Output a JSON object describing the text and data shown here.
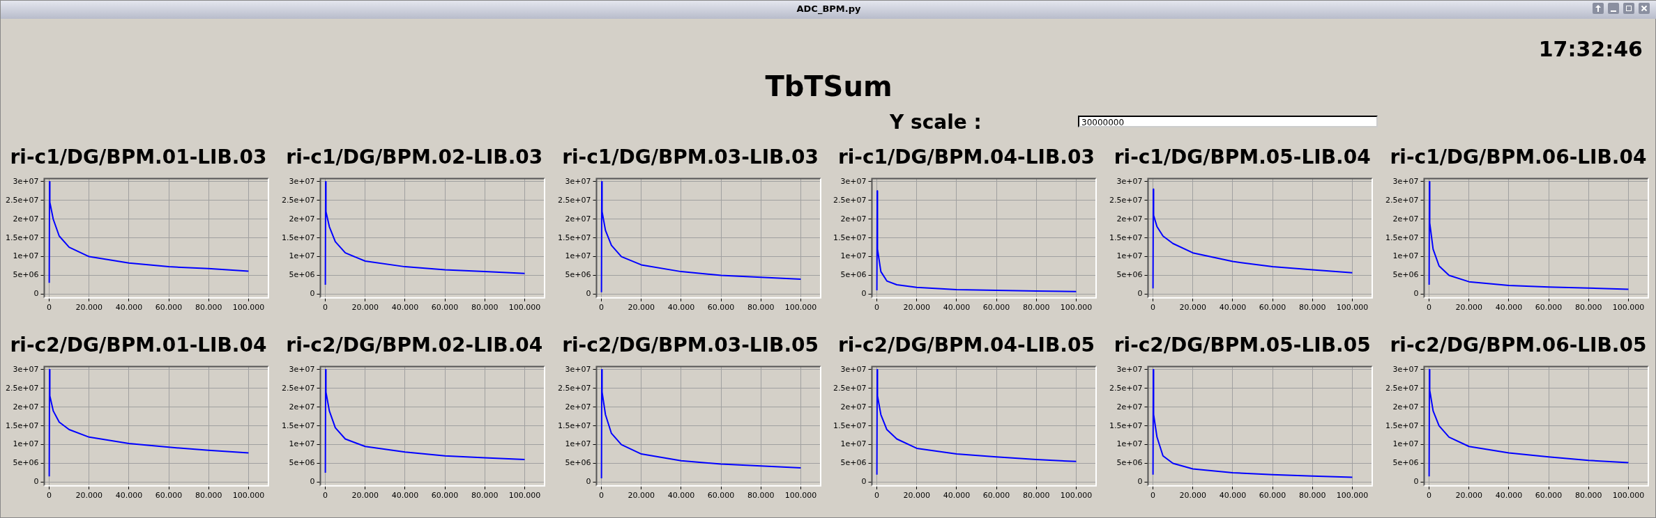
{
  "chart_data": [
    {
      "type": "other",
      "title": "TbTSum",
      "annotations": [
        "ADC_BPM.py",
        "17:32:46",
        "Y scale :",
        "30000000"
      ]
    },
    {
      "type": "line",
      "title": "ri-c1/DG/BPM.01-LIB.03",
      "color": "#0000ff",
      "grid": true,
      "x": [
        0,
        0.15,
        0.3,
        2,
        5,
        10,
        20,
        40,
        60,
        80,
        100
      ],
      "values": [
        3000000,
        30000000,
        24500000,
        20000000,
        15500000,
        12500000,
        10000000,
        8300000,
        7300000,
        6800000,
        6100000
      ],
      "xlim": [
        -2.5,
        110
      ],
      "ylim": [
        -1000000,
        30800000
      ],
      "xticks": [
        {
          "value": 0,
          "label": "0"
        },
        {
          "value": 20,
          "label": "20.000"
        },
        {
          "value": 40,
          "label": "40.000"
        },
        {
          "value": 60,
          "label": "60.000"
        },
        {
          "value": 80,
          "label": "80.000"
        },
        {
          "value": 100,
          "label": "100.000"
        }
      ],
      "yticks": [
        {
          "value": 0,
          "label": "0"
        },
        {
          "value": 5000000,
          "label": "5e+06"
        },
        {
          "value": 10000000,
          "label": "1e+07"
        },
        {
          "value": 15000000,
          "label": "1.5e+07"
        },
        {
          "value": 20000000,
          "label": "2e+07"
        },
        {
          "value": 25000000,
          "label": "2.5e+07"
        },
        {
          "value": 30000000,
          "label": "3e+07"
        }
      ]
    },
    {
      "type": "line",
      "title": "ri-c1/DG/BPM.02-LIB.03",
      "color": "#0000ff",
      "grid": true,
      "x": [
        0,
        0.15,
        0.3,
        2,
        5,
        10,
        20,
        40,
        60,
        80,
        100
      ],
      "values": [
        2500000,
        30000000,
        22000000,
        18000000,
        14000000,
        11000000,
        8800000,
        7300000,
        6500000,
        6000000,
        5500000
      ],
      "xlim": [
        -2.5,
        110
      ],
      "ylim": [
        -1000000,
        30800000
      ],
      "xticks": [
        {
          "value": 0,
          "label": "0"
        },
        {
          "value": 20,
          "label": "20.000"
        },
        {
          "value": 40,
          "label": "40.000"
        },
        {
          "value": 60,
          "label": "60.000"
        },
        {
          "value": 80,
          "label": "80.000"
        },
        {
          "value": 100,
          "label": "100.000"
        }
      ],
      "yticks": [
        {
          "value": 0,
          "label": "0"
        },
        {
          "value": 5000000,
          "label": "5e+06"
        },
        {
          "value": 10000000,
          "label": "1e+07"
        },
        {
          "value": 15000000,
          "label": "1.5e+07"
        },
        {
          "value": 20000000,
          "label": "2e+07"
        },
        {
          "value": 25000000,
          "label": "2.5e+07"
        },
        {
          "value": 30000000,
          "label": "3e+07"
        }
      ]
    },
    {
      "type": "line",
      "title": "ri-c1/DG/BPM.03-LIB.03",
      "color": "#0000ff",
      "grid": true,
      "x": [
        0,
        0.15,
        0.3,
        2,
        5,
        10,
        20,
        40,
        60,
        80,
        100
      ],
      "values": [
        500000,
        30000000,
        22000000,
        17000000,
        13000000,
        10000000,
        7800000,
        6000000,
        5000000,
        4500000,
        4000000
      ],
      "xlim": [
        -2.5,
        110
      ],
      "ylim": [
        -1000000,
        30800000
      ],
      "xticks": [
        {
          "value": 0,
          "label": "0"
        },
        {
          "value": 20,
          "label": "20.000"
        },
        {
          "value": 40,
          "label": "40.000"
        },
        {
          "value": 60,
          "label": "60.000"
        },
        {
          "value": 80,
          "label": "80.000"
        },
        {
          "value": 100,
          "label": "100.000"
        }
      ],
      "yticks": [
        {
          "value": 0,
          "label": "0"
        },
        {
          "value": 5000000,
          "label": "5e+06"
        },
        {
          "value": 10000000,
          "label": "1e+07"
        },
        {
          "value": 15000000,
          "label": "1.5e+07"
        },
        {
          "value": 20000000,
          "label": "2e+07"
        },
        {
          "value": 25000000,
          "label": "2.5e+07"
        },
        {
          "value": 30000000,
          "label": "3e+07"
        }
      ]
    },
    {
      "type": "line",
      "title": "ri-c1/DG/BPM.04-LIB.03",
      "color": "#0000ff",
      "grid": true,
      "x": [
        0,
        0.15,
        0.3,
        2,
        5,
        10,
        20,
        40,
        60,
        80,
        100
      ],
      "values": [
        1000000,
        27500000,
        12000000,
        6000000,
        3500000,
        2500000,
        1800000,
        1200000,
        1000000,
        800000,
        700000
      ],
      "xlim": [
        -2.5,
        110
      ],
      "ylim": [
        -1000000,
        30800000
      ],
      "xticks": [
        {
          "value": 0,
          "label": "0"
        },
        {
          "value": 20,
          "label": "20.000"
        },
        {
          "value": 40,
          "label": "40.000"
        },
        {
          "value": 60,
          "label": "60.000"
        },
        {
          "value": 80,
          "label": "80.000"
        },
        {
          "value": 100,
          "label": "100.000"
        }
      ],
      "yticks": [
        {
          "value": 0,
          "label": "0"
        },
        {
          "value": 5000000,
          "label": "5e+06"
        },
        {
          "value": 10000000,
          "label": "1e+07"
        },
        {
          "value": 15000000,
          "label": "1.5e+07"
        },
        {
          "value": 20000000,
          "label": "2e+07"
        },
        {
          "value": 25000000,
          "label": "2.5e+07"
        },
        {
          "value": 30000000,
          "label": "3e+07"
        }
      ]
    },
    {
      "type": "line",
      "title": "ri-c1/DG/BPM.05-LIB.04",
      "color": "#0000ff",
      "grid": true,
      "x": [
        0,
        0.15,
        0.3,
        2,
        5,
        10,
        20,
        40,
        60,
        80,
        100
      ],
      "values": [
        1500000,
        28000000,
        21000000,
        18000000,
        15500000,
        13500000,
        11000000,
        8700000,
        7300000,
        6500000,
        5700000
      ],
      "xlim": [
        -2.5,
        110
      ],
      "ylim": [
        -1000000,
        30800000
      ],
      "xticks": [
        {
          "value": 0,
          "label": "0"
        },
        {
          "value": 20,
          "label": "20.000"
        },
        {
          "value": 40,
          "label": "40.000"
        },
        {
          "value": 60,
          "label": "60.000"
        },
        {
          "value": 80,
          "label": "80.000"
        },
        {
          "value": 100,
          "label": "100.000"
        }
      ],
      "yticks": [
        {
          "value": 0,
          "label": "0"
        },
        {
          "value": 5000000,
          "label": "5e+06"
        },
        {
          "value": 10000000,
          "label": "1e+07"
        },
        {
          "value": 15000000,
          "label": "1.5e+07"
        },
        {
          "value": 20000000,
          "label": "2e+07"
        },
        {
          "value": 25000000,
          "label": "2.5e+07"
        },
        {
          "value": 30000000,
          "label": "3e+07"
        }
      ]
    },
    {
      "type": "line",
      "title": "ri-c1/DG/BPM.06-LIB.04",
      "color": "#0000ff",
      "grid": true,
      "x": [
        0,
        0.15,
        0.3,
        2,
        5,
        10,
        20,
        40,
        60,
        80,
        100
      ],
      "values": [
        2500000,
        30000000,
        19000000,
        12000000,
        7500000,
        5000000,
        3300000,
        2300000,
        1900000,
        1600000,
        1300000
      ],
      "xlim": [
        -2.5,
        110
      ],
      "ylim": [
        -1000000,
        30800000
      ],
      "xticks": [
        {
          "value": 0,
          "label": "0"
        },
        {
          "value": 20,
          "label": "20.000"
        },
        {
          "value": 40,
          "label": "40.000"
        },
        {
          "value": 60,
          "label": "60.000"
        },
        {
          "value": 80,
          "label": "80.000"
        },
        {
          "value": 100,
          "label": "100.000"
        }
      ],
      "yticks": [
        {
          "value": 0,
          "label": "0"
        },
        {
          "value": 5000000,
          "label": "5e+06"
        },
        {
          "value": 10000000,
          "label": "1e+07"
        },
        {
          "value": 15000000,
          "label": "1.5e+07"
        },
        {
          "value": 20000000,
          "label": "2e+07"
        },
        {
          "value": 25000000,
          "label": "2.5e+07"
        },
        {
          "value": 30000000,
          "label": "3e+07"
        }
      ]
    },
    {
      "type": "line",
      "title": "ri-c2/DG/BPM.01-LIB.04",
      "color": "#0000ff",
      "grid": true,
      "x": [
        0,
        0.15,
        0.3,
        2,
        5,
        10,
        20,
        40,
        60,
        80,
        100
      ],
      "values": [
        1500000,
        30000000,
        23000000,
        19000000,
        16000000,
        14000000,
        12000000,
        10300000,
        9300000,
        8500000,
        7800000
      ],
      "xlim": [
        -2.5,
        110
      ],
      "ylim": [
        -1000000,
        30800000
      ],
      "xticks": [
        {
          "value": 0,
          "label": "0"
        },
        {
          "value": 20,
          "label": "20.000"
        },
        {
          "value": 40,
          "label": "40.000"
        },
        {
          "value": 60,
          "label": "60.000"
        },
        {
          "value": 80,
          "label": "80.000"
        },
        {
          "value": 100,
          "label": "100.000"
        }
      ],
      "yticks": [
        {
          "value": 0,
          "label": "0"
        },
        {
          "value": 5000000,
          "label": "5e+06"
        },
        {
          "value": 10000000,
          "label": "1e+07"
        },
        {
          "value": 15000000,
          "label": "1.5e+07"
        },
        {
          "value": 20000000,
          "label": "2e+07"
        },
        {
          "value": 25000000,
          "label": "2.5e+07"
        },
        {
          "value": 30000000,
          "label": "3e+07"
        }
      ]
    },
    {
      "type": "line",
      "title": "ri-c2/DG/BPM.02-LIB.04",
      "color": "#0000ff",
      "grid": true,
      "x": [
        0,
        0.15,
        0.3,
        2,
        5,
        10,
        20,
        40,
        60,
        80,
        100
      ],
      "values": [
        2500000,
        30000000,
        24000000,
        19000000,
        14500000,
        11500000,
        9500000,
        8000000,
        7000000,
        6500000,
        6000000
      ],
      "xlim": [
        -2.5,
        110
      ],
      "ylim": [
        -1000000,
        30800000
      ],
      "xticks": [
        {
          "value": 0,
          "label": "0"
        },
        {
          "value": 20,
          "label": "20.000"
        },
        {
          "value": 40,
          "label": "40.000"
        },
        {
          "value": 60,
          "label": "60.000"
        },
        {
          "value": 80,
          "label": "80.000"
        },
        {
          "value": 100,
          "label": "100.000"
        }
      ],
      "yticks": [
        {
          "value": 0,
          "label": "0"
        },
        {
          "value": 5000000,
          "label": "5e+06"
        },
        {
          "value": 10000000,
          "label": "1e+07"
        },
        {
          "value": 15000000,
          "label": "1.5e+07"
        },
        {
          "value": 20000000,
          "label": "2e+07"
        },
        {
          "value": 25000000,
          "label": "2.5e+07"
        },
        {
          "value": 30000000,
          "label": "3e+07"
        }
      ]
    },
    {
      "type": "line",
      "title": "ri-c2/DG/BPM.03-LIB.05",
      "color": "#0000ff",
      "grid": true,
      "x": [
        0,
        0.15,
        0.3,
        2,
        5,
        10,
        20,
        40,
        60,
        80,
        100
      ],
      "values": [
        1000000,
        30000000,
        24000000,
        18000000,
        13000000,
        10000000,
        7500000,
        5700000,
        4800000,
        4300000,
        3800000
      ],
      "xlim": [
        -2.5,
        110
      ],
      "ylim": [
        -1000000,
        30800000
      ],
      "xticks": [
        {
          "value": 0,
          "label": "0"
        },
        {
          "value": 20,
          "label": "20.000"
        },
        {
          "value": 40,
          "label": "40.000"
        },
        {
          "value": 60,
          "label": "60.000"
        },
        {
          "value": 80,
          "label": "80.000"
        },
        {
          "value": 100,
          "label": "100.000"
        }
      ],
      "yticks": [
        {
          "value": 0,
          "label": "0"
        },
        {
          "value": 5000000,
          "label": "5e+06"
        },
        {
          "value": 10000000,
          "label": "1e+07"
        },
        {
          "value": 15000000,
          "label": "1.5e+07"
        },
        {
          "value": 20000000,
          "label": "2e+07"
        },
        {
          "value": 25000000,
          "label": "2.5e+07"
        },
        {
          "value": 30000000,
          "label": "3e+07"
        }
      ]
    },
    {
      "type": "line",
      "title": "ri-c2/DG/BPM.04-LIB.05",
      "color": "#0000ff",
      "grid": true,
      "x": [
        0,
        0.15,
        0.3,
        2,
        5,
        10,
        20,
        40,
        60,
        80,
        100
      ],
      "values": [
        2000000,
        30000000,
        23000000,
        18000000,
        14000000,
        11500000,
        9000000,
        7500000,
        6700000,
        6000000,
        5500000
      ],
      "xlim": [
        -2.5,
        110
      ],
      "ylim": [
        -1000000,
        30800000
      ],
      "xticks": [
        {
          "value": 0,
          "label": "0"
        },
        {
          "value": 20,
          "label": "20.000"
        },
        {
          "value": 40,
          "label": "40.000"
        },
        {
          "value": 60,
          "label": "60.000"
        },
        {
          "value": 80,
          "label": "80.000"
        },
        {
          "value": 100,
          "label": "100.000"
        }
      ],
      "yticks": [
        {
          "value": 0,
          "label": "0"
        },
        {
          "value": 5000000,
          "label": "5e+06"
        },
        {
          "value": 10000000,
          "label": "1e+07"
        },
        {
          "value": 15000000,
          "label": "1.5e+07"
        },
        {
          "value": 20000000,
          "label": "2e+07"
        },
        {
          "value": 25000000,
          "label": "2.5e+07"
        },
        {
          "value": 30000000,
          "label": "3e+07"
        }
      ]
    },
    {
      "type": "line",
      "title": "ri-c2/DG/BPM.05-LIB.05",
      "color": "#0000ff",
      "grid": true,
      "x": [
        0,
        0.15,
        0.3,
        2,
        5,
        10,
        20,
        40,
        60,
        80,
        100
      ],
      "values": [
        2000000,
        30000000,
        18000000,
        12000000,
        7000000,
        5000000,
        3500000,
        2500000,
        2000000,
        1600000,
        1300000
      ],
      "xlim": [
        -2.5,
        110
      ],
      "ylim": [
        -1000000,
        30800000
      ],
      "xticks": [
        {
          "value": 0,
          "label": "0"
        },
        {
          "value": 20,
          "label": "20.000"
        },
        {
          "value": 40,
          "label": "40.000"
        },
        {
          "value": 60,
          "label": "60.000"
        },
        {
          "value": 80,
          "label": "80.000"
        },
        {
          "value": 100,
          "label": "100.000"
        }
      ],
      "yticks": [
        {
          "value": 0,
          "label": "0"
        },
        {
          "value": 5000000,
          "label": "5e+06"
        },
        {
          "value": 10000000,
          "label": "1e+07"
        },
        {
          "value": 15000000,
          "label": "1.5e+07"
        },
        {
          "value": 20000000,
          "label": "2e+07"
        },
        {
          "value": 25000000,
          "label": "2.5e+07"
        },
        {
          "value": 30000000,
          "label": "3e+07"
        }
      ]
    },
    {
      "type": "line",
      "title": "ri-c2/DG/BPM.06-LIB.05",
      "color": "#0000ff",
      "grid": true,
      "x": [
        0,
        0.15,
        0.3,
        2,
        5,
        10,
        20,
        40,
        60,
        80,
        100
      ],
      "values": [
        1500000,
        30000000,
        24500000,
        19000000,
        15000000,
        12000000,
        9500000,
        7800000,
        6700000,
        5800000,
        5200000
      ],
      "xlim": [
        -2.5,
        110
      ],
      "ylim": [
        -1000000,
        30800000
      ],
      "xticks": [
        {
          "value": 0,
          "label": "0"
        },
        {
          "value": 20,
          "label": "20.000"
        },
        {
          "value": 40,
          "label": "40.000"
        },
        {
          "value": 60,
          "label": "60.000"
        },
        {
          "value": 80,
          "label": "80.000"
        },
        {
          "value": 100,
          "label": "100.000"
        }
      ],
      "yticks": [
        {
          "value": 0,
          "label": "0"
        },
        {
          "value": 5000000,
          "label": "5e+06"
        },
        {
          "value": 10000000,
          "label": "1e+07"
        },
        {
          "value": 15000000,
          "label": "1.5e+07"
        },
        {
          "value": 20000000,
          "label": "2e+07"
        },
        {
          "value": 25000000,
          "label": "2.5e+07"
        },
        {
          "value": 30000000,
          "label": "3e+07"
        }
      ]
    }
  ]
}
